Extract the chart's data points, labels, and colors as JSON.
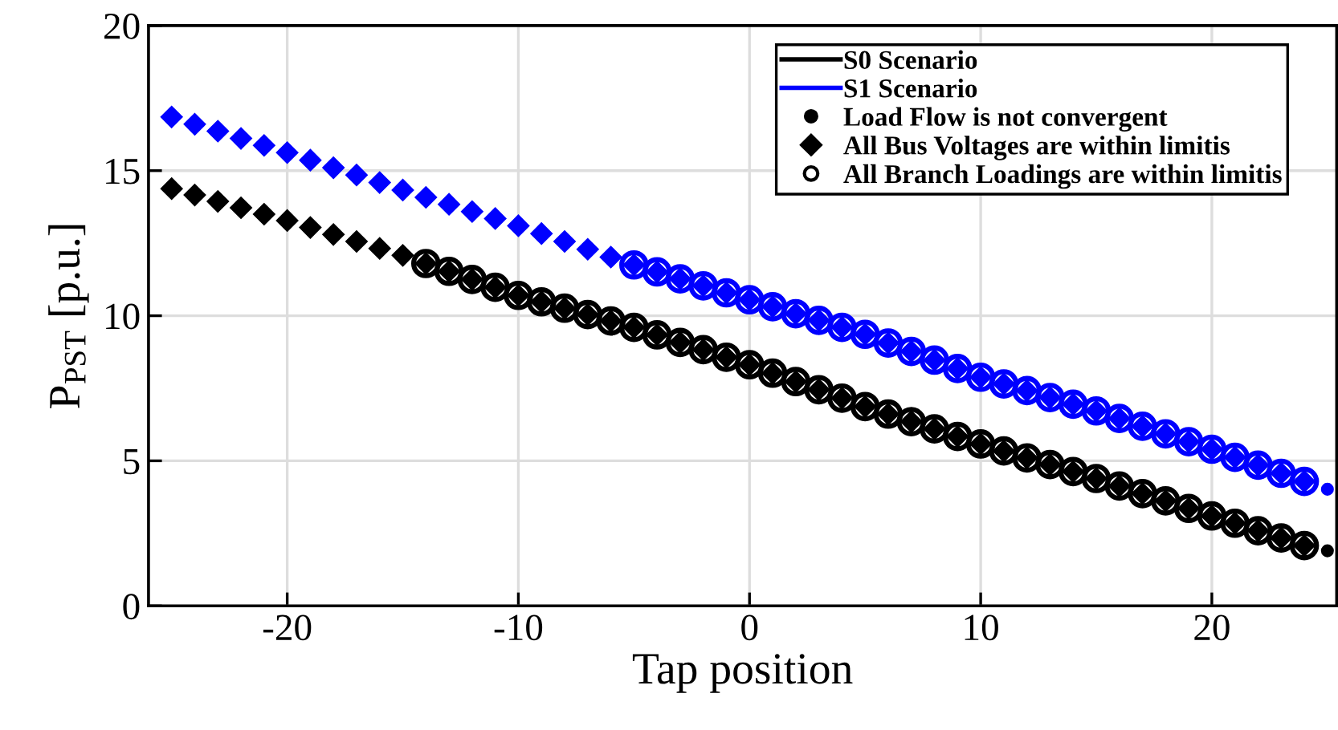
{
  "chart_data": {
    "type": "scatter",
    "xlabel": "Tap position",
    "ylabel": "P$_{PST}$ [p.u.]",
    "xlim": [
      -26,
      25.4
    ],
    "ylim": [
      0,
      20
    ],
    "xticks": [
      -20,
      -10,
      0,
      10,
      20
    ],
    "yticks": [
      0,
      5,
      10,
      15,
      20
    ],
    "grid": true,
    "legend": "top right",
    "series": [
      {
        "name": "S0 Scenario",
        "type": "line",
        "color": "#000000"
      },
      {
        "name": "S1 Scenario",
        "type": "line",
        "color": "#0000ff"
      },
      {
        "name": "Load Flow is not convergent",
        "color": "#000000",
        "marker": "point",
        "x": [
          25
        ],
        "values": [
          1.9
        ]
      },
      {
        "name": "All Bus Voltages are within limitis",
        "color": "#000000",
        "marker": "diamond",
        "x": [
          -25,
          -24,
          -23,
          -22,
          -21,
          -20,
          -19,
          -18,
          -17,
          -16,
          -15,
          -14,
          -13,
          -12,
          -11,
          -10,
          -9,
          -8,
          -7,
          -6,
          -5,
          -4,
          -3,
          -2,
          -1,
          0,
          1,
          2,
          3,
          4,
          5,
          6,
          7,
          8,
          9,
          10,
          11,
          12,
          13,
          14,
          15,
          16,
          17,
          18,
          19,
          20,
          21,
          22,
          23,
          24
        ],
        "values": [
          14.38,
          14.16,
          13.94,
          13.72,
          13.5,
          13.28,
          13.04,
          12.8,
          12.56,
          12.32,
          12.08,
          11.8,
          11.53,
          11.25,
          10.98,
          10.7,
          10.48,
          10.26,
          10.04,
          9.82,
          9.6,
          9.34,
          9.08,
          8.83,
          8.57,
          8.31,
          8.02,
          7.73,
          7.45,
          7.16,
          6.87,
          6.61,
          6.35,
          6.1,
          5.84,
          5.58,
          5.34,
          5.1,
          4.87,
          4.63,
          4.39,
          4.13,
          3.87,
          3.62,
          3.36,
          3.1,
          2.85,
          2.59,
          2.34,
          2.08
        ]
      },
      {
        "name": "All Branch Loadings are within limitis",
        "color": "#000000",
        "marker": "circle",
        "x": [
          -14,
          -13,
          -12,
          -11,
          -10,
          -9,
          -8,
          -7,
          -6,
          -5,
          -4,
          -3,
          -2,
          -1,
          0,
          1,
          2,
          3,
          4,
          5,
          6,
          7,
          8,
          9,
          10,
          11,
          12,
          13,
          14,
          15,
          16,
          17,
          18,
          19,
          20,
          21,
          22,
          23,
          24
        ],
        "values": [
          11.8,
          11.53,
          11.25,
          10.98,
          10.7,
          10.48,
          10.26,
          10.04,
          9.82,
          9.6,
          9.34,
          9.08,
          8.83,
          8.57,
          8.31,
          8.02,
          7.73,
          7.45,
          7.16,
          6.87,
          6.61,
          6.35,
          6.1,
          5.84,
          5.58,
          5.34,
          5.1,
          4.87,
          4.63,
          4.39,
          4.13,
          3.87,
          3.62,
          3.36,
          3.1,
          2.85,
          2.59,
          2.34,
          2.08
        ]
      },
      {
        "color": "#0000ff",
        "marker": "point",
        "x": [
          25
        ],
        "values": [
          4.02
        ]
      },
      {
        "color": "#0000ff",
        "marker": "diamond",
        "x": [
          -25,
          -24,
          -23,
          -22,
          -21,
          -20,
          -19,
          -18,
          -17,
          -16,
          -15,
          -14,
          -13,
          -12,
          -11,
          -10,
          -9,
          -8,
          -7,
          -6,
          -5,
          -4,
          -3,
          -2,
          -1,
          0,
          1,
          2,
          3,
          4,
          5,
          6,
          7,
          8,
          9,
          10,
          11,
          12,
          13,
          14,
          15,
          16,
          17,
          18,
          19,
          20,
          21,
          22,
          23,
          24
        ],
        "values": [
          16.85,
          16.6,
          16.36,
          16.11,
          15.87,
          15.62,
          15.36,
          15.1,
          14.85,
          14.59,
          14.33,
          14.08,
          13.84,
          13.59,
          13.35,
          13.1,
          12.83,
          12.56,
          12.29,
          12.02,
          11.75,
          11.51,
          11.27,
          11.03,
          10.79,
          10.55,
          10.31,
          10.07,
          9.84,
          9.6,
          9.36,
          9.06,
          8.77,
          8.47,
          8.18,
          7.88,
          7.65,
          7.42,
          7.18,
          6.95,
          6.72,
          6.46,
          6.19,
          5.93,
          5.66,
          5.4,
          5.12,
          4.85,
          4.57,
          4.29
        ]
      },
      {
        "color": "#0000ff",
        "marker": "circle",
        "x": [
          -5,
          -4,
          -3,
          -2,
          -1,
          0,
          1,
          2,
          3,
          4,
          5,
          6,
          7,
          8,
          9,
          10,
          11,
          12,
          13,
          14,
          15,
          16,
          17,
          18,
          19,
          20,
          21,
          22,
          23,
          24
        ],
        "values": [
          11.75,
          11.51,
          11.27,
          11.03,
          10.79,
          10.55,
          10.31,
          10.07,
          9.84,
          9.6,
          9.36,
          9.06,
          8.77,
          8.47,
          8.18,
          7.88,
          7.65,
          7.42,
          7.18,
          6.95,
          6.72,
          6.46,
          6.19,
          5.93,
          5.66,
          5.4,
          5.12,
          4.85,
          4.57,
          4.29
        ]
      }
    ]
  }
}
